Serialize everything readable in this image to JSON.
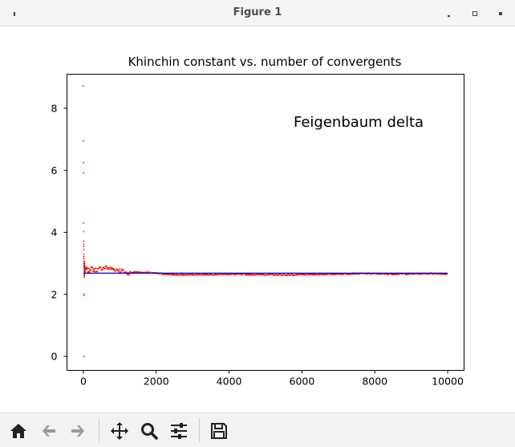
{
  "window": {
    "title": "Figure 1"
  },
  "chart_data": {
    "type": "scatter",
    "title": "Khinchin constant vs. number of convergents",
    "annotation": "Feigenbaum delta",
    "xlabel": "",
    "ylabel": "",
    "xlim": [
      -450,
      10450
    ],
    "ylim": [
      -0.45,
      9.1
    ],
    "xticks": [
      0,
      2000,
      4000,
      6000,
      8000,
      10000
    ],
    "yticks": [
      0,
      2,
      4,
      6,
      8
    ],
    "grid": false,
    "series": [
      {
        "kind": "scatter",
        "color": "#ff0000",
        "early_points": [
          [
            1,
            8.72
          ],
          [
            2,
            6.95
          ],
          [
            3,
            6.25
          ],
          [
            4,
            5.92
          ],
          [
            5,
            4.3
          ],
          [
            6,
            4.02
          ],
          [
            7,
            3.72
          ],
          [
            8,
            3.62
          ],
          [
            9,
            3.55
          ],
          [
            10,
            3.45
          ],
          [
            11,
            3.3
          ],
          [
            12,
            3.22
          ],
          [
            13,
            3.15
          ],
          [
            14,
            3.08
          ],
          [
            15,
            3.0
          ],
          [
            16,
            2.95
          ],
          [
            17,
            2.9
          ],
          [
            18,
            2.85
          ],
          [
            19,
            2.0
          ],
          [
            20,
            1.98
          ],
          [
            21,
            0.0
          ],
          [
            22,
            2.75
          ],
          [
            23,
            2.62
          ],
          [
            24,
            2.6
          ],
          [
            25,
            2.55
          ],
          [
            26,
            2.7
          ],
          [
            27,
            2.8
          ],
          [
            28,
            2.9
          ],
          [
            29,
            3.05
          ],
          [
            30,
            2.95
          ],
          [
            31,
            2.8
          ],
          [
            32,
            2.7
          ],
          [
            33,
            2.65
          ],
          [
            34,
            2.75
          ],
          [
            35,
            2.85
          ],
          [
            36,
            3.0
          ],
          [
            37,
            2.9
          ],
          [
            38,
            2.78
          ],
          [
            39,
            2.72
          ],
          [
            40,
            2.68
          ]
        ],
        "path": [
          [
            40,
            2.8
          ],
          [
            80,
            2.82
          ],
          [
            120,
            2.78
          ],
          [
            160,
            2.76
          ],
          [
            200,
            2.85
          ],
          [
            250,
            2.82
          ],
          [
            300,
            2.78
          ],
          [
            400,
            2.8
          ],
          [
            500,
            2.84
          ],
          [
            600,
            2.87
          ],
          [
            700,
            2.85
          ],
          [
            800,
            2.82
          ],
          [
            900,
            2.8
          ],
          [
            1000,
            2.78
          ],
          [
            1100,
            2.74
          ],
          [
            1200,
            2.68
          ],
          [
            1300,
            2.7
          ],
          [
            1400,
            2.72
          ],
          [
            1600,
            2.71
          ],
          [
            1800,
            2.7
          ],
          [
            2000,
            2.68
          ],
          [
            2200,
            2.66
          ],
          [
            2400,
            2.64
          ],
          [
            2600,
            2.63
          ],
          [
            2800,
            2.63
          ],
          [
            3000,
            2.64
          ],
          [
            3400,
            2.64
          ],
          [
            3800,
            2.65
          ],
          [
            4200,
            2.65
          ],
          [
            4600,
            2.64
          ],
          [
            5000,
            2.64
          ],
          [
            5400,
            2.63
          ],
          [
            5800,
            2.63
          ],
          [
            6200,
            2.64
          ],
          [
            6600,
            2.65
          ],
          [
            7000,
            2.66
          ],
          [
            7400,
            2.67
          ],
          [
            7800,
            2.67
          ],
          [
            8200,
            2.66
          ],
          [
            8600,
            2.66
          ],
          [
            9000,
            2.66
          ],
          [
            9400,
            2.67
          ],
          [
            9800,
            2.67
          ],
          [
            10000,
            2.65
          ]
        ]
      },
      {
        "kind": "line",
        "color": "#0000cc",
        "points": [
          [
            0,
            2.685
          ],
          [
            10000,
            2.685
          ]
        ]
      }
    ]
  },
  "toolbar": {
    "buttons": [
      {
        "name": "home-button",
        "icon": "home-icon"
      },
      {
        "name": "back-button",
        "icon": "arrow-left-icon"
      },
      {
        "name": "forward-button",
        "icon": "arrow-right-icon"
      },
      {
        "name": "pan-button",
        "icon": "move-icon"
      },
      {
        "name": "zoom-button",
        "icon": "magnifier-icon"
      },
      {
        "name": "configure-button",
        "icon": "sliders-icon"
      },
      {
        "name": "save-button",
        "icon": "floppy-icon"
      }
    ]
  }
}
